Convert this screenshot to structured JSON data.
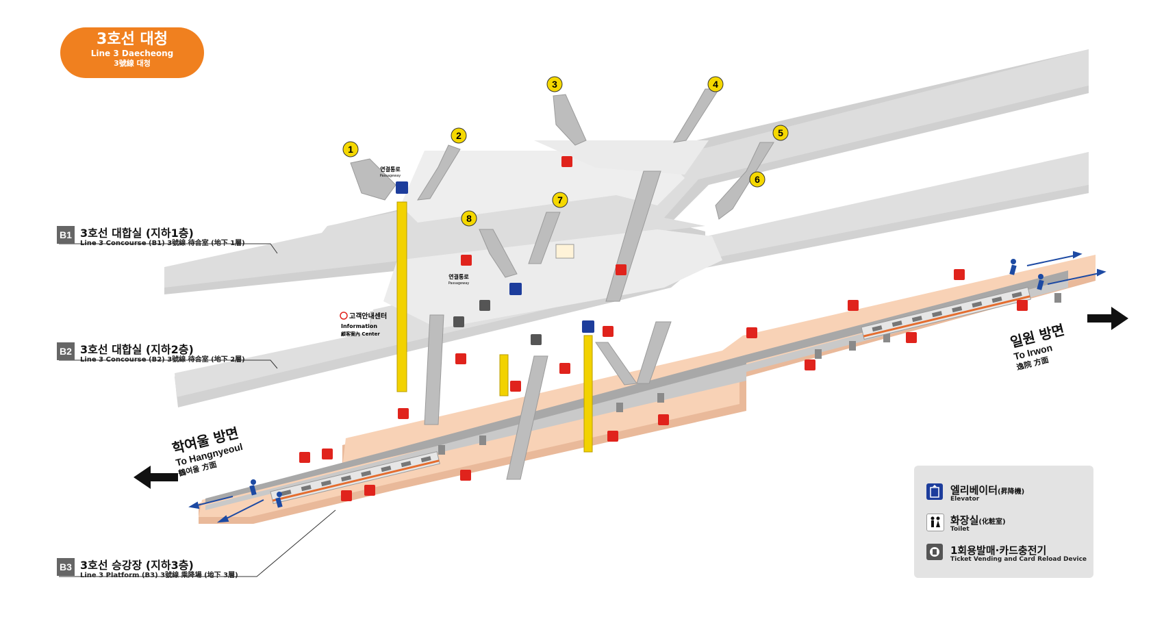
{
  "station": {
    "name_ko": "3호선 대청",
    "name_en": "Line 3 Daecheong",
    "name_hanja": "3號線 대청",
    "line_color": "#F0801F"
  },
  "floors": [
    {
      "tag": "B1",
      "name": "3호선 대합실 (지하1층)",
      "sub": "Line 3 Concourse (B1) 3號線 待合室 (地下 1層)"
    },
    {
      "tag": "B2",
      "name": "3호선 대합실 (지하2층)",
      "sub": "Line 3 Concourse (B2) 3號線 待合室 (地下 2層)"
    },
    {
      "tag": "B3",
      "name": "3호선 승강장 (지하3층)",
      "sub": "Line 3 Platform (B3) 3號線 乘降場 (地下 3層)"
    }
  ],
  "directions": {
    "left": {
      "ko": "학여울 방면",
      "en": "To Hangnyeoul",
      "hanja": "鶴여울 方面"
    },
    "right": {
      "ko": "일원 방면",
      "en": "To Irwon",
      "hanja": "逸院 方面"
    }
  },
  "exits": [
    "1",
    "2",
    "3",
    "4",
    "5",
    "6",
    "7",
    "8"
  ],
  "labels": {
    "passage": "연결통로",
    "passage_en": "Passageway",
    "info_ko": "고객안내센터",
    "info_en": "Information",
    "info_hanja": "顧客案內 Center"
  },
  "legend": [
    {
      "icon": "elevator-icon",
      "ko": "엘리베이터",
      "hanja": "(昇降機)",
      "en": "Elevator",
      "color": "#1d3d9c"
    },
    {
      "icon": "toilet-icon",
      "ko": "화장실",
      "hanja": "(化粧室)",
      "en": "Toilet",
      "color": "#ffffff"
    },
    {
      "icon": "ticket-machine-icon",
      "ko": "1회용발매·카드충전기",
      "hanja": "",
      "en": "Ticket Vending and Card Reload Device",
      "color": "#555555"
    }
  ],
  "colors": {
    "floor": "#dcdcdc",
    "platform": "#f8d2b6",
    "elevator_shaft": "#f2d200",
    "exit_badge": "#f5d800",
    "emergency": "#e0231c",
    "arrow": "#1d4aa3"
  }
}
